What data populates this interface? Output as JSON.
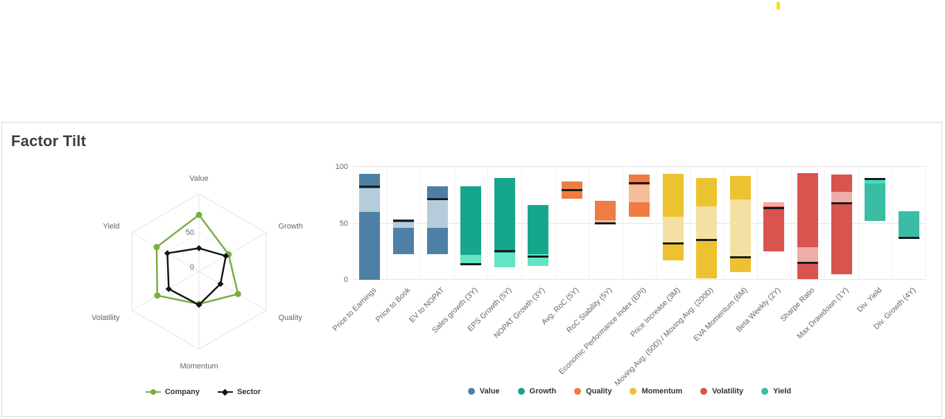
{
  "page": {
    "top_marker_color": "#F6DF1C"
  },
  "card": {
    "title": "Factor Tilt"
  },
  "chart_data": [
    {
      "type": "radar",
      "title": "",
      "axes": [
        "Value",
        "Growth",
        "Quality",
        "Momentum",
        "Volatility",
        "Yield"
      ],
      "scale": {
        "min": 0,
        "max": 100,
        "ring_labels": [
          "0",
          "50"
        ]
      },
      "grid": "hexagon",
      "legend_position": "bottom-center",
      "series": [
        {
          "name": "Company",
          "color": "#7AAD3F",
          "marker": "circle",
          "values": [
            73,
            44,
            58,
            42,
            62,
            63
          ]
        },
        {
          "name": "Sector",
          "color": "#141414",
          "marker": "diamond",
          "values": [
            30,
            40,
            32,
            43,
            45,
            47
          ]
        }
      ]
    },
    {
      "type": "bar",
      "subtype": "floating-column-range",
      "title": "",
      "xlabel": "",
      "ylabel": "",
      "ylim": [
        0,
        100
      ],
      "yticks": [
        0,
        50,
        100
      ],
      "grid": "horizontal-on, faint-vertical-category-lines",
      "legend_position": "bottom-center",
      "marker_color": "#1B1B1B",
      "marker_meaning": "sector level line",
      "categories": [
        "Price to Earnings",
        "Price to Book",
        "EV to NOPAT",
        "Sales growth (3Y)",
        "EPS Growth (5Y)",
        "NOPAT Growth (3Y)",
        "Avg. RoC (5Y)",
        "RoC Stability (5Y)",
        "Economic Performance Index (EPI)",
        "Price Increase (3M)",
        "Moving Avg. (50D) / Moving Avg. (200D)",
        "EVA Momentum (6M)",
        "Beta Weekly (2Y)",
        "Sharpe Ratio",
        "Max Drawdown (1Y)",
        "Div. Yield",
        "Div. Growth (4Y)"
      ],
      "factors": [
        {
          "name": "Value",
          "color": "#4E80A5",
          "light": "#B5CDDB"
        },
        {
          "name": "Growth",
          "color": "#16A68C",
          "light": "#62E5C4"
        },
        {
          "name": "Quality",
          "color": "#ED7D42",
          "light": "#F4BD9D"
        },
        {
          "name": "Momentum",
          "color": "#ECC230",
          "light": "#F3E0A2"
        },
        {
          "name": "Volatility",
          "color": "#D9534F",
          "light": "#EFADA7"
        },
        {
          "name": "Yield",
          "color": "#3BBCA4",
          "light": "#41E0C0"
        }
      ],
      "bars": [
        {
          "factor": "Value",
          "low": 0,
          "high": 94,
          "band": [
            60,
            81
          ],
          "marker": 82
        },
        {
          "factor": "Value",
          "low": 23,
          "high": 52,
          "band": [
            46,
            51
          ],
          "marker": 52
        },
        {
          "factor": "Value",
          "low": 23,
          "high": 83,
          "band": [
            46,
            71
          ],
          "marker": 71
        },
        {
          "factor": "Growth",
          "low": 13,
          "high": 83,
          "band": [
            13,
            22
          ],
          "marker": 13.5
        },
        {
          "factor": "Growth",
          "low": 11,
          "high": 90,
          "band": [
            11,
            24
          ],
          "marker": 25
        },
        {
          "factor": "Growth",
          "low": 12,
          "high": 66,
          "band": [
            12,
            23
          ],
          "marker": 20.5
        },
        {
          "factor": "Quality",
          "low": 72,
          "high": 87,
          "band": null,
          "marker": 79
        },
        {
          "factor": "Quality",
          "low": 49,
          "high": 70,
          "band": [
            49,
            53
          ],
          "marker": 50
        },
        {
          "factor": "Quality",
          "low": 56,
          "high": 93,
          "band": [
            69,
            84
          ],
          "marker": 85
        },
        {
          "factor": "Momentum",
          "low": 17,
          "high": 94,
          "band": [
            33,
            56
          ],
          "marker": 32
        },
        {
          "factor": "Momentum",
          "low": 1,
          "high": 90,
          "band": [
            36,
            65
          ],
          "marker": 35
        },
        {
          "factor": "Momentum",
          "low": 7,
          "high": 92,
          "band": [
            20,
            71
          ],
          "marker": 19.5
        },
        {
          "factor": "Volatility",
          "low": 25,
          "high": 69,
          "band": [
            65,
            69
          ],
          "marker": 63.5
        },
        {
          "factor": "Volatility",
          "low": 0.5,
          "high": 94.5,
          "band": [
            16,
            29
          ],
          "marker": 14.5
        },
        {
          "factor": "Volatility",
          "low": 5,
          "high": 93,
          "band": [
            69,
            78
          ],
          "marker": 67.5
        },
        {
          "factor": "Yield",
          "low": 52,
          "high": 89,
          "band": [
            85.5,
            88.5
          ],
          "marker": 89
        },
        {
          "factor": "Yield",
          "low": 37,
          "high": 61,
          "band": null,
          "marker": 37
        }
      ]
    }
  ]
}
